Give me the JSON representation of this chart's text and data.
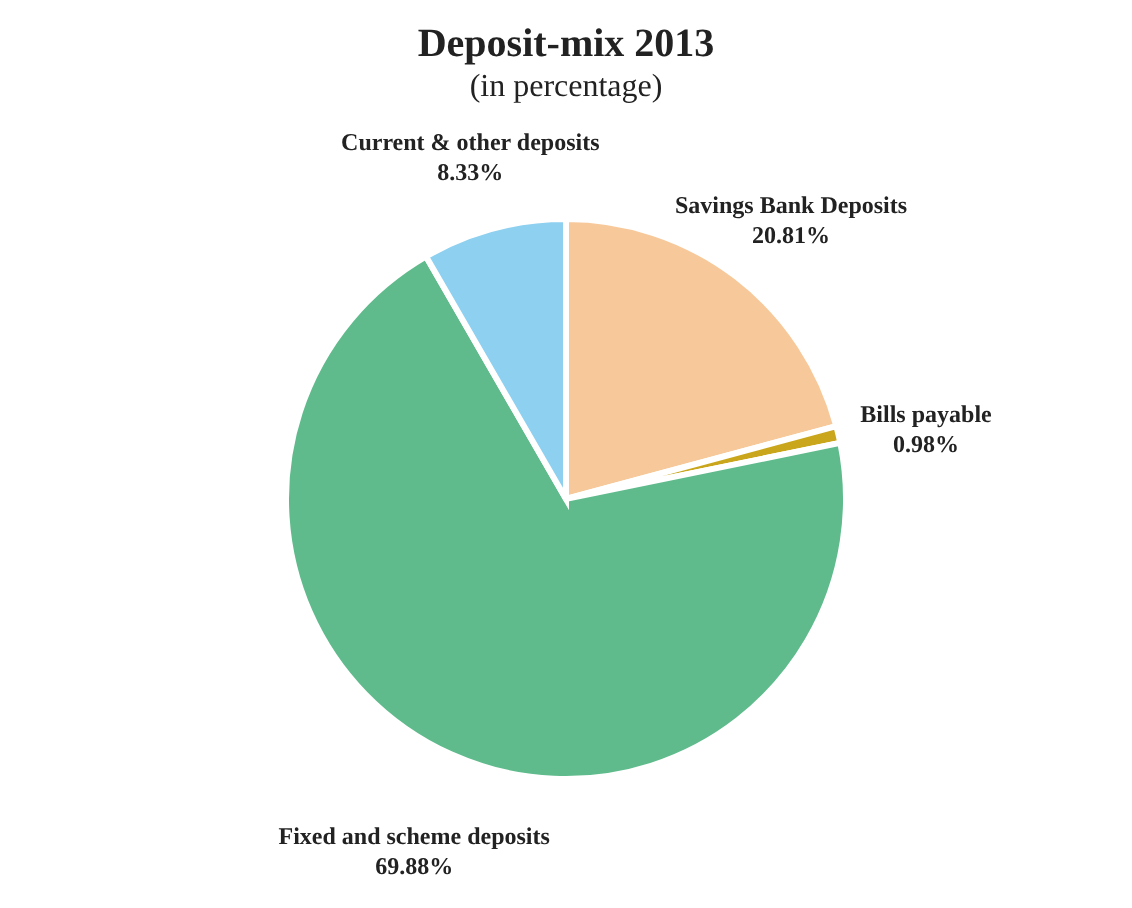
{
  "chart_data": {
    "type": "pie",
    "title": "Deposit-mix 2013",
    "subtitle": "(in percentage)",
    "categories": [
      "Savings Bank Deposits",
      "Bills payable",
      "Fixed and scheme deposits",
      "Current & other deposits"
    ],
    "values": [
      20.81,
      0.98,
      69.88,
      8.33
    ],
    "value_labels": [
      "20.81%",
      "0.98%",
      "69.88%",
      "8.33%"
    ],
    "colors": [
      "#f7c99a",
      "#c9a61c",
      "#5fbb8c",
      "#8dd0f0"
    ]
  }
}
